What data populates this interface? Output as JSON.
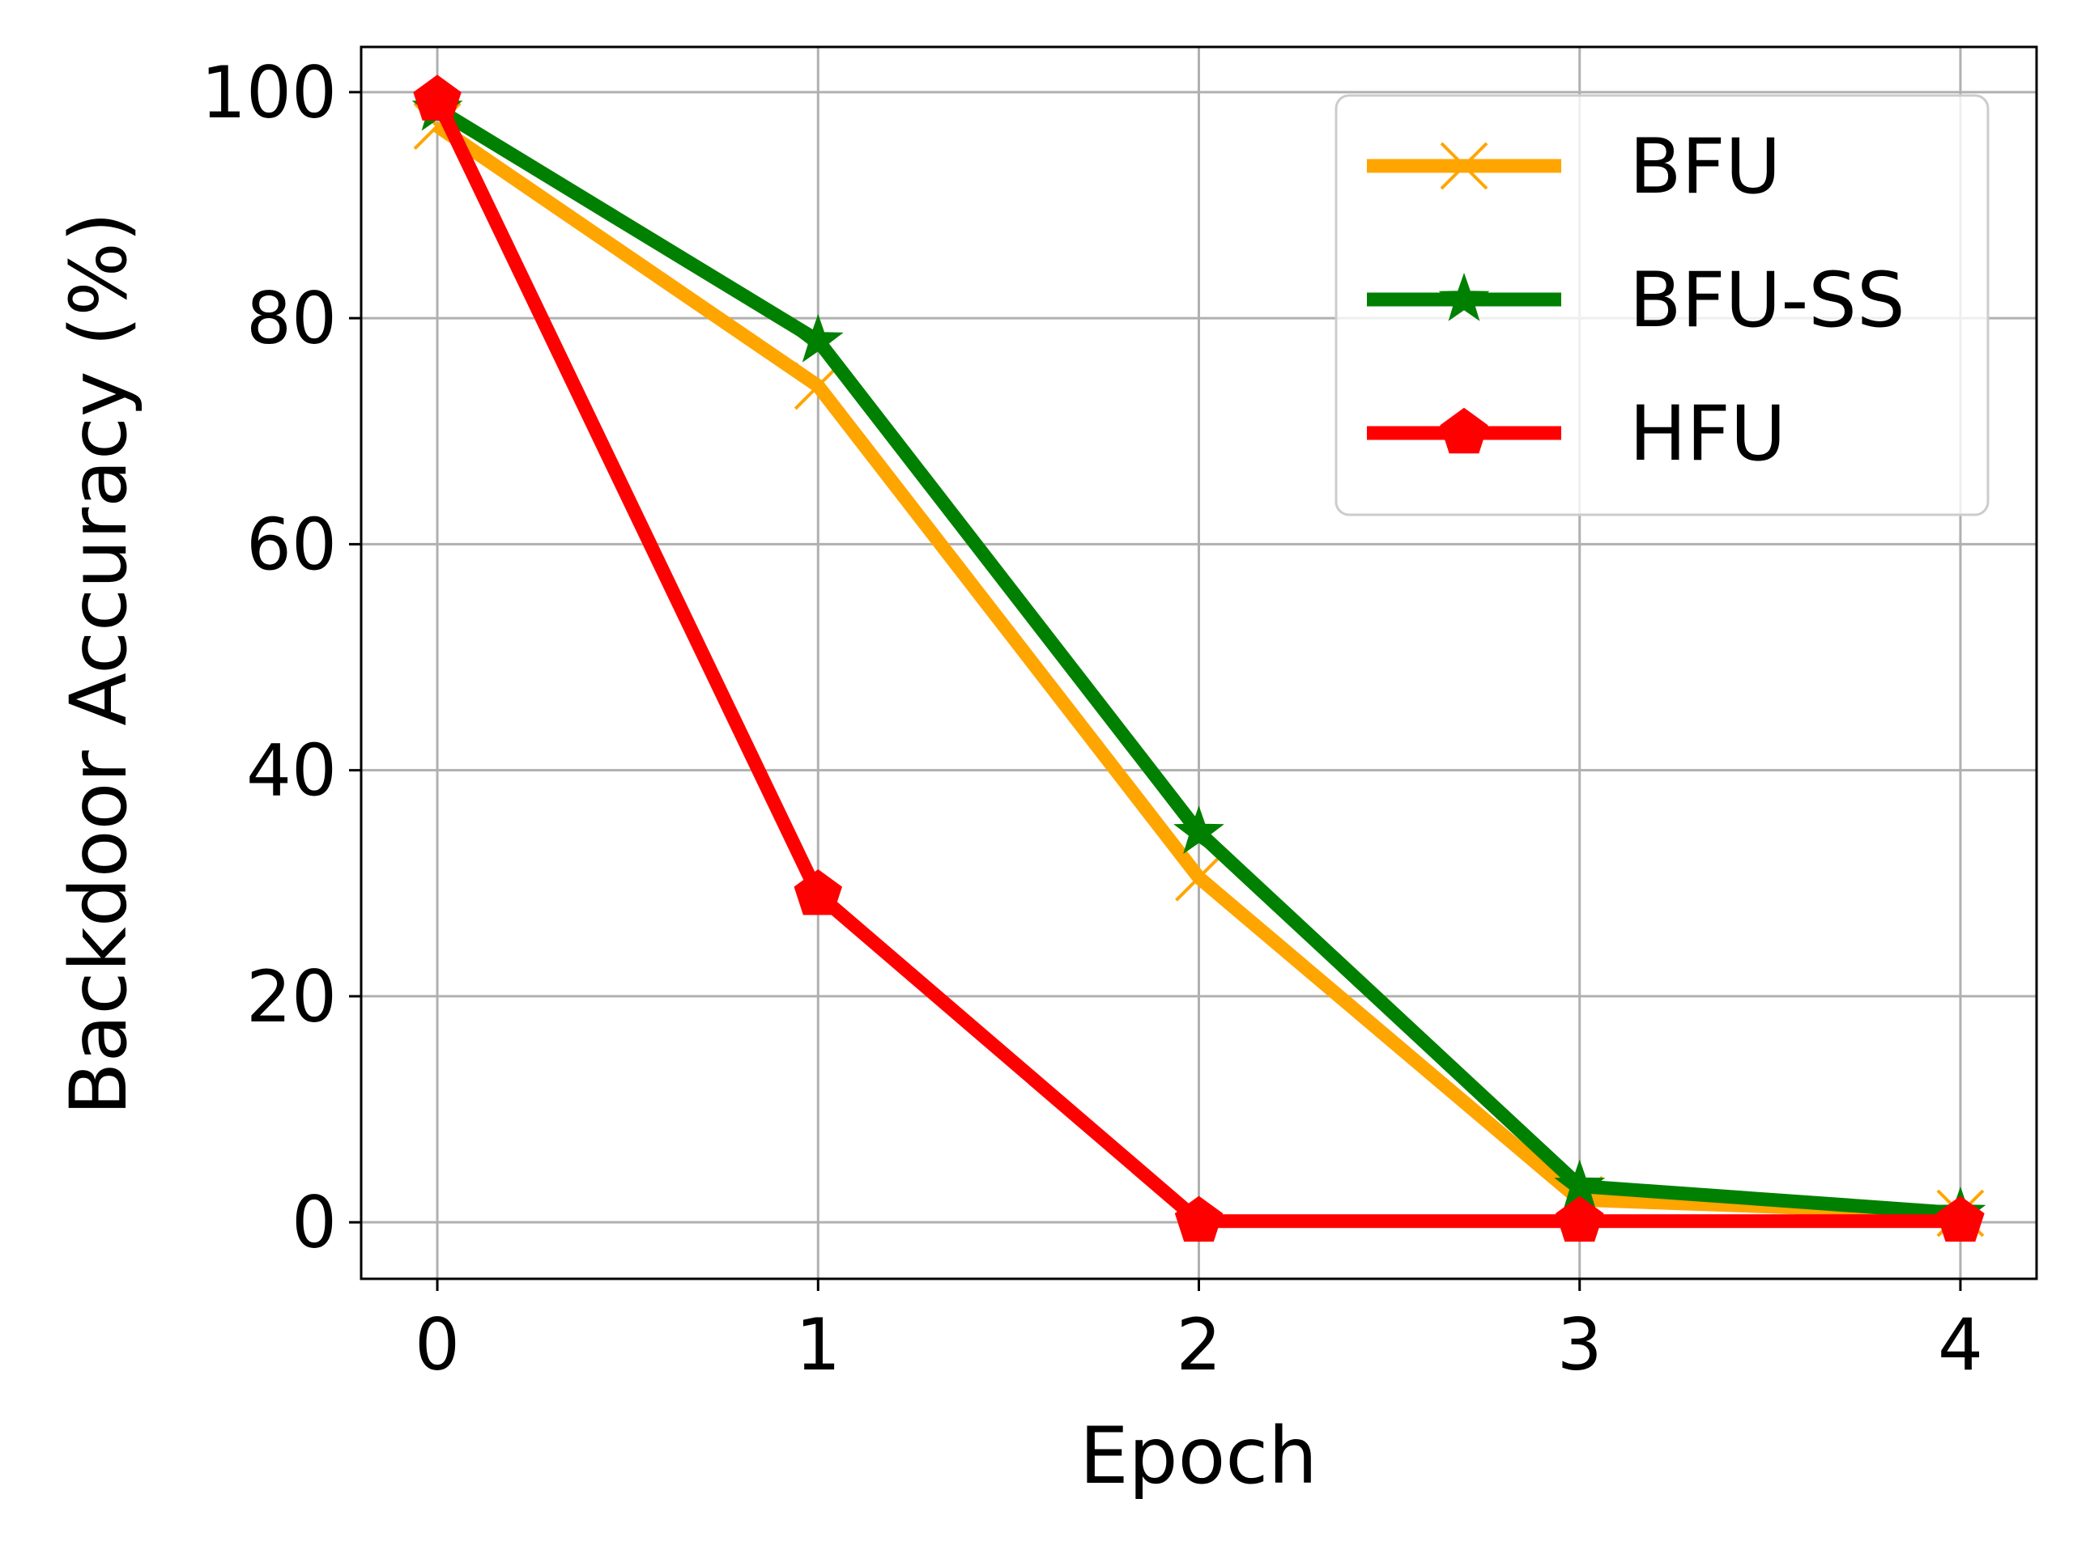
{
  "chart_data": {
    "type": "line",
    "title": "",
    "xlabel": "Epoch",
    "ylabel": "Backdoor Accuracy (%)",
    "x": [
      0,
      1,
      2,
      3,
      4
    ],
    "xticks": [
      "0",
      "1",
      "2",
      "3",
      "4"
    ],
    "yticks": [
      "0",
      "20",
      "40",
      "60",
      "80",
      "100"
    ],
    "xlim": [
      -0.2,
      4.2
    ],
    "ylim": [
      -5,
      104
    ],
    "grid": true,
    "legend_position": "top-right",
    "series": [
      {
        "name": "BFU",
        "values": [
          97.0,
          74.0,
          30.5,
          2.0,
          0.8
        ],
        "color": "#FFA500",
        "marker": "x-marker"
      },
      {
        "name": "BFU-SS",
        "values": [
          98.5,
          78.0,
          34.5,
          3.2,
          0.8
        ],
        "color": "#008000",
        "marker": "star-marker"
      },
      {
        "name": "HFU",
        "values": [
          99.3,
          29.0,
          0.1,
          0.1,
          0.1
        ],
        "color": "#FF0000",
        "marker": "pentagon-marker"
      }
    ]
  }
}
